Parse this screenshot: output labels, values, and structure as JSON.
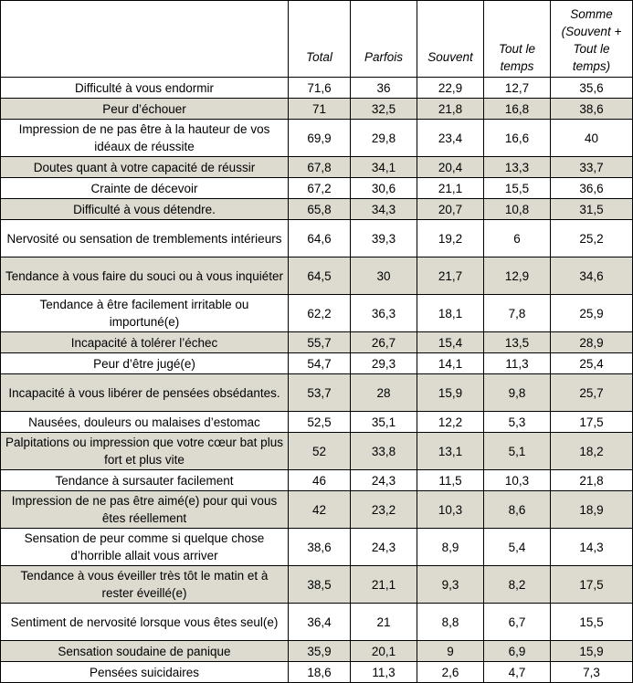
{
  "headers": {
    "label": "",
    "total": "Total",
    "parfois": "Parfois",
    "souvent": "Souvent",
    "tout_le_temps": "Tout le temps",
    "somme": "Somme (Souvent + Tout le temps)"
  },
  "rows": [
    {
      "label": "Difficulté à vous endormir",
      "total": "71,6",
      "parfois": "36",
      "souvent": "22,9",
      "tout": "12,7",
      "somme": "35,6"
    },
    {
      "label": "Peur d’échouer",
      "total": "71",
      "parfois": "32,5",
      "souvent": "21,8",
      "tout": "16,8",
      "somme": "38,6"
    },
    {
      "label": "Impression de ne pas être à la hauteur de vos idéaux de réussite",
      "total": "69,9",
      "parfois": "29,8",
      "souvent": "23,4",
      "tout": "16,6",
      "somme": "40"
    },
    {
      "label": "Doutes quant à votre capacité de réussir",
      "total": "67,8",
      "parfois": "34,1",
      "souvent": "20,4",
      "tout": "13,3",
      "somme": "33,7"
    },
    {
      "label": "Crainte de décevoir",
      "total": "67,2",
      "parfois": "30,6",
      "souvent": "21,1",
      "tout": "15,5",
      "somme": "36,6"
    },
    {
      "label": "Difficulté à vous détendre.",
      "total": "65,8",
      "parfois": "34,3",
      "souvent": "20,7",
      "tout": "10,8",
      "somme": "31,5"
    },
    {
      "label": "Nervosité ou sensation de tremblements intérieurs",
      "total": "64,6",
      "parfois": "39,3",
      "souvent": "19,2",
      "tout": "6",
      "somme": "25,2"
    },
    {
      "label": "Tendance à vous faire du souci ou à vous inquiéter",
      "total": "64,5",
      "parfois": "30",
      "souvent": "21,7",
      "tout": "12,9",
      "somme": "34,6"
    },
    {
      "label": "Tendance à être facilement irritable ou importuné(e)",
      "total": "62,2",
      "parfois": "36,3",
      "souvent": "18,1",
      "tout": "7,8",
      "somme": "25,9"
    },
    {
      "label": "Incapacité à tolérer l’échec",
      "total": "55,7",
      "parfois": "26,7",
      "souvent": "15,4",
      "tout": "13,5",
      "somme": "28,9"
    },
    {
      "label": "Peur d’être jugé(e)",
      "total": "54,7",
      "parfois": "29,3",
      "souvent": "14,1",
      "tout": "11,3",
      "somme": "25,4"
    },
    {
      "label": "Incapacité à vous libérer de pensées obsédantes.",
      "total": "53,7",
      "parfois": "28",
      "souvent": "15,9",
      "tout": "9,8",
      "somme": "25,7"
    },
    {
      "label": "Nausées, douleurs ou malaises d’estomac",
      "total": "52,5",
      "parfois": "35,1",
      "souvent": "12,2",
      "tout": "5,3",
      "somme": "17,5"
    },
    {
      "label": "Palpitations ou impression que votre cœur bat plus fort et plus vite",
      "total": "52",
      "parfois": "33,8",
      "souvent": "13,1",
      "tout": "5,1",
      "somme": "18,2"
    },
    {
      "label": "Tendance à sursauter facilement",
      "total": "46",
      "parfois": "24,3",
      "souvent": "11,5",
      "tout": "10,3",
      "somme": "21,8"
    },
    {
      "label": "Impression de ne pas être aimé(e) pour qui vous êtes réellement",
      "total": "42",
      "parfois": "23,2",
      "souvent": "10,3",
      "tout": "8,6",
      "somme": "18,9"
    },
    {
      "label": "Sensation de peur comme si quelque chose d’horrible allait vous arriver",
      "total": "38,6",
      "parfois": "24,3",
      "souvent": "8,9",
      "tout": "5,4",
      "somme": "14,3"
    },
    {
      "label": "Tendance à vous éveiller très tôt le matin et à rester éveillé(e)",
      "total": "38,5",
      "parfois": "21,1",
      "souvent": "9,3",
      "tout": "8,2",
      "somme": "17,5"
    },
    {
      "label": "Sentiment de nervosité lorsque vous êtes seul(e)",
      "total": "36,4",
      "parfois": "21",
      "souvent": "8,8",
      "tout": "6,7",
      "somme": "15,5"
    },
    {
      "label": "Sensation soudaine de panique",
      "total": "35,9",
      "parfois": "20,1",
      "souvent": "9",
      "tout": "6,9",
      "somme": "15,9"
    },
    {
      "label": "Pensées suicidaires",
      "total": "18,6",
      "parfois": "11,3",
      "souvent": "2,6",
      "tout": "4,7",
      "somme": "7,3"
    }
  ],
  "shading": {
    "shaded_row_color": "#dddad0",
    "shaded_rows": [
      1,
      3,
      5,
      7,
      9,
      11,
      13,
      15,
      17,
      19
    ],
    "two_line_rows": [
      2,
      6,
      7,
      8,
      11,
      13,
      15,
      16,
      17,
      18
    ]
  }
}
